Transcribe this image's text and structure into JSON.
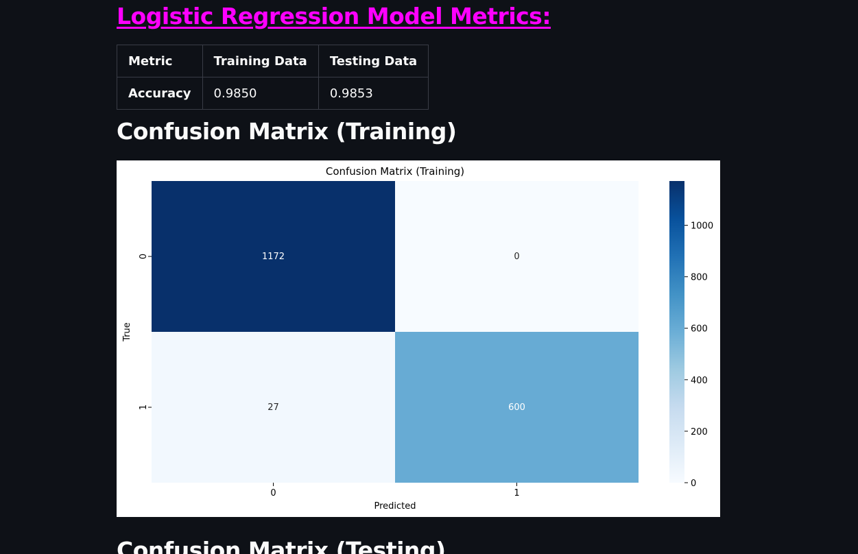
{
  "page": {
    "title": "Logistic Regression Model Metrics:",
    "section_training": "Confusion Matrix (Training)",
    "section_testing": "Confusion Matrix (Testing)"
  },
  "metrics_table": {
    "headers": [
      "Metric",
      "Training Data",
      "Testing Data"
    ],
    "rows": [
      [
        "Accuracy",
        "0.9850",
        "0.9853"
      ]
    ]
  },
  "chart_data": {
    "type": "heatmap",
    "title": "Confusion Matrix (Training)",
    "xlabel": "Predicted",
    "ylabel": "True",
    "x_categories": [
      "0",
      "1"
    ],
    "y_categories": [
      "0",
      "1"
    ],
    "values": [
      [
        1172,
        0
      ],
      [
        27,
        600
      ]
    ],
    "colormap": "Blues",
    "color_low": "#f7fbff",
    "color_high": "#08306b",
    "colorbar": {
      "range": [
        0,
        1172
      ],
      "ticks": [
        0,
        200,
        400,
        600,
        800,
        1000
      ],
      "tick_labels": [
        "0",
        "200",
        "400",
        "600",
        "800",
        "1000"
      ]
    }
  }
}
